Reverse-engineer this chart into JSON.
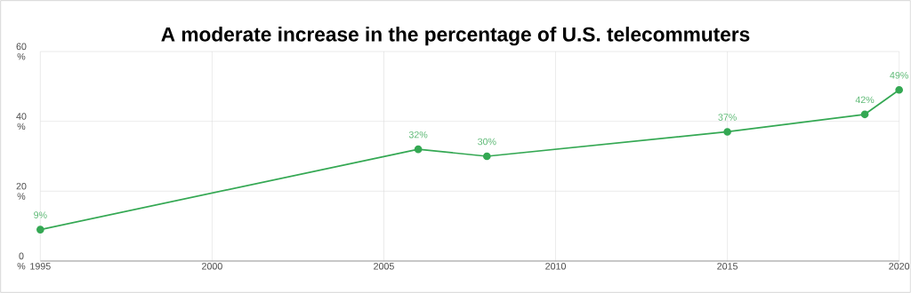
{
  "chart_data": {
    "type": "line",
    "title": "A moderate increase in the percentage of U.S. telecommuters",
    "x": [
      1995,
      2006,
      2008,
      2015,
      2019,
      2020
    ],
    "series": [
      {
        "color": "#34a853",
        "values": [
          9,
          32,
          30,
          37,
          42,
          49
        ],
        "value_labels": [
          "9%",
          "32%",
          "30%",
          "37%",
          "42%",
          "49%"
        ]
      }
    ],
    "xlim": [
      1995,
      2020
    ],
    "xticks": [
      1995,
      2000,
      2005,
      2010,
      2015,
      2020
    ],
    "ylim": [
      0,
      60
    ],
    "yticks": [
      {
        "value": 0,
        "label": "0 %"
      },
      {
        "value": 20,
        "label": "20 %"
      },
      {
        "value": 40,
        "label": "40 %"
      },
      {
        "value": 60,
        "label": "60 %"
      }
    ],
    "grid": true,
    "marker": "circle",
    "line_style": "solid"
  }
}
